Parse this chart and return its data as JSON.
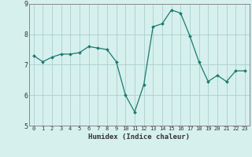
{
  "x": [
    0,
    1,
    2,
    3,
    4,
    5,
    6,
    7,
    8,
    9,
    10,
    11,
    12,
    13,
    14,
    15,
    16,
    17,
    18,
    19,
    20,
    21,
    22,
    23
  ],
  "y": [
    7.3,
    7.1,
    7.25,
    7.35,
    7.35,
    7.4,
    7.6,
    7.55,
    7.5,
    7.1,
    6.0,
    5.45,
    6.35,
    8.25,
    8.35,
    8.8,
    8.7,
    7.95,
    7.1,
    6.45,
    6.65,
    6.45,
    6.8,
    6.8
  ],
  "xlabel": "Humidex (Indice chaleur)",
  "xlim": [
    -0.5,
    23.5
  ],
  "ylim": [
    5,
    9
  ],
  "yticks": [
    5,
    6,
    7,
    8,
    9
  ],
  "xticks": [
    0,
    1,
    2,
    3,
    4,
    5,
    6,
    7,
    8,
    9,
    10,
    11,
    12,
    13,
    14,
    15,
    16,
    17,
    18,
    19,
    20,
    21,
    22,
    23
  ],
  "line_color": "#1a7a6e",
  "marker_color": "#1a7a6e",
  "bg_color": "#d6f0ee",
  "grid_color": "#aacfcc"
}
